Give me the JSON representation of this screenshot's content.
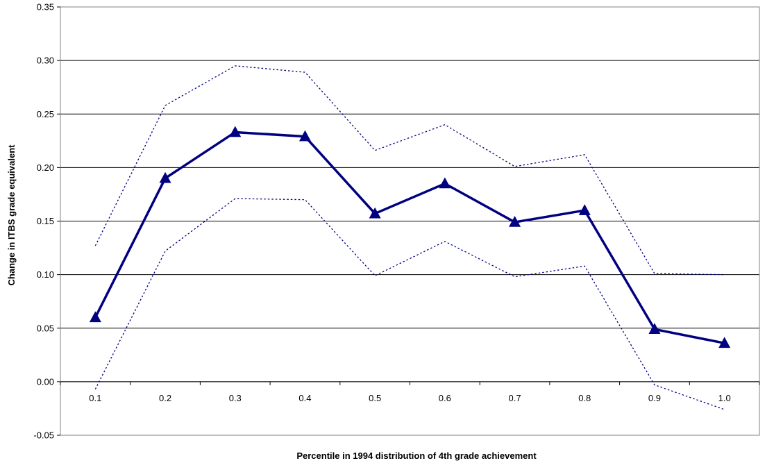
{
  "chart_data": {
    "type": "line",
    "title": "",
    "xlabel": "Percentile in 1994 distribution of 4th grade achievement",
    "ylabel": "Change in ITBS grade equivalent",
    "ylim": [
      -0.05,
      0.35
    ],
    "y_ticks": [
      "-0.05",
      "0.00",
      "0.05",
      "0.10",
      "0.15",
      "0.20",
      "0.25",
      "0.30",
      "0.35"
    ],
    "categories": [
      "0.1",
      "0.2",
      "0.3",
      "0.4",
      "0.5",
      "0.6",
      "0.7",
      "0.8",
      "0.9",
      "1.0"
    ],
    "grid": "horizontal",
    "legend": "none",
    "series": [
      {
        "role": "estimate",
        "style": "solid-triangle-markers",
        "color": "#000080",
        "values": [
          0.06,
          0.19,
          0.233,
          0.229,
          0.157,
          0.185,
          0.149,
          0.16,
          0.049,
          0.036
        ]
      },
      {
        "role": "upper-bound",
        "style": "dotted",
        "color": "#000080",
        "values": [
          0.127,
          0.258,
          0.295,
          0.289,
          0.216,
          0.24,
          0.201,
          0.212,
          0.101,
          0.1
        ]
      },
      {
        "role": "lower-bound",
        "style": "dotted",
        "color": "#000080",
        "values": [
          -0.007,
          0.122,
          0.171,
          0.17,
          0.099,
          0.131,
          0.098,
          0.108,
          -0.003,
          -0.026
        ]
      }
    ]
  }
}
